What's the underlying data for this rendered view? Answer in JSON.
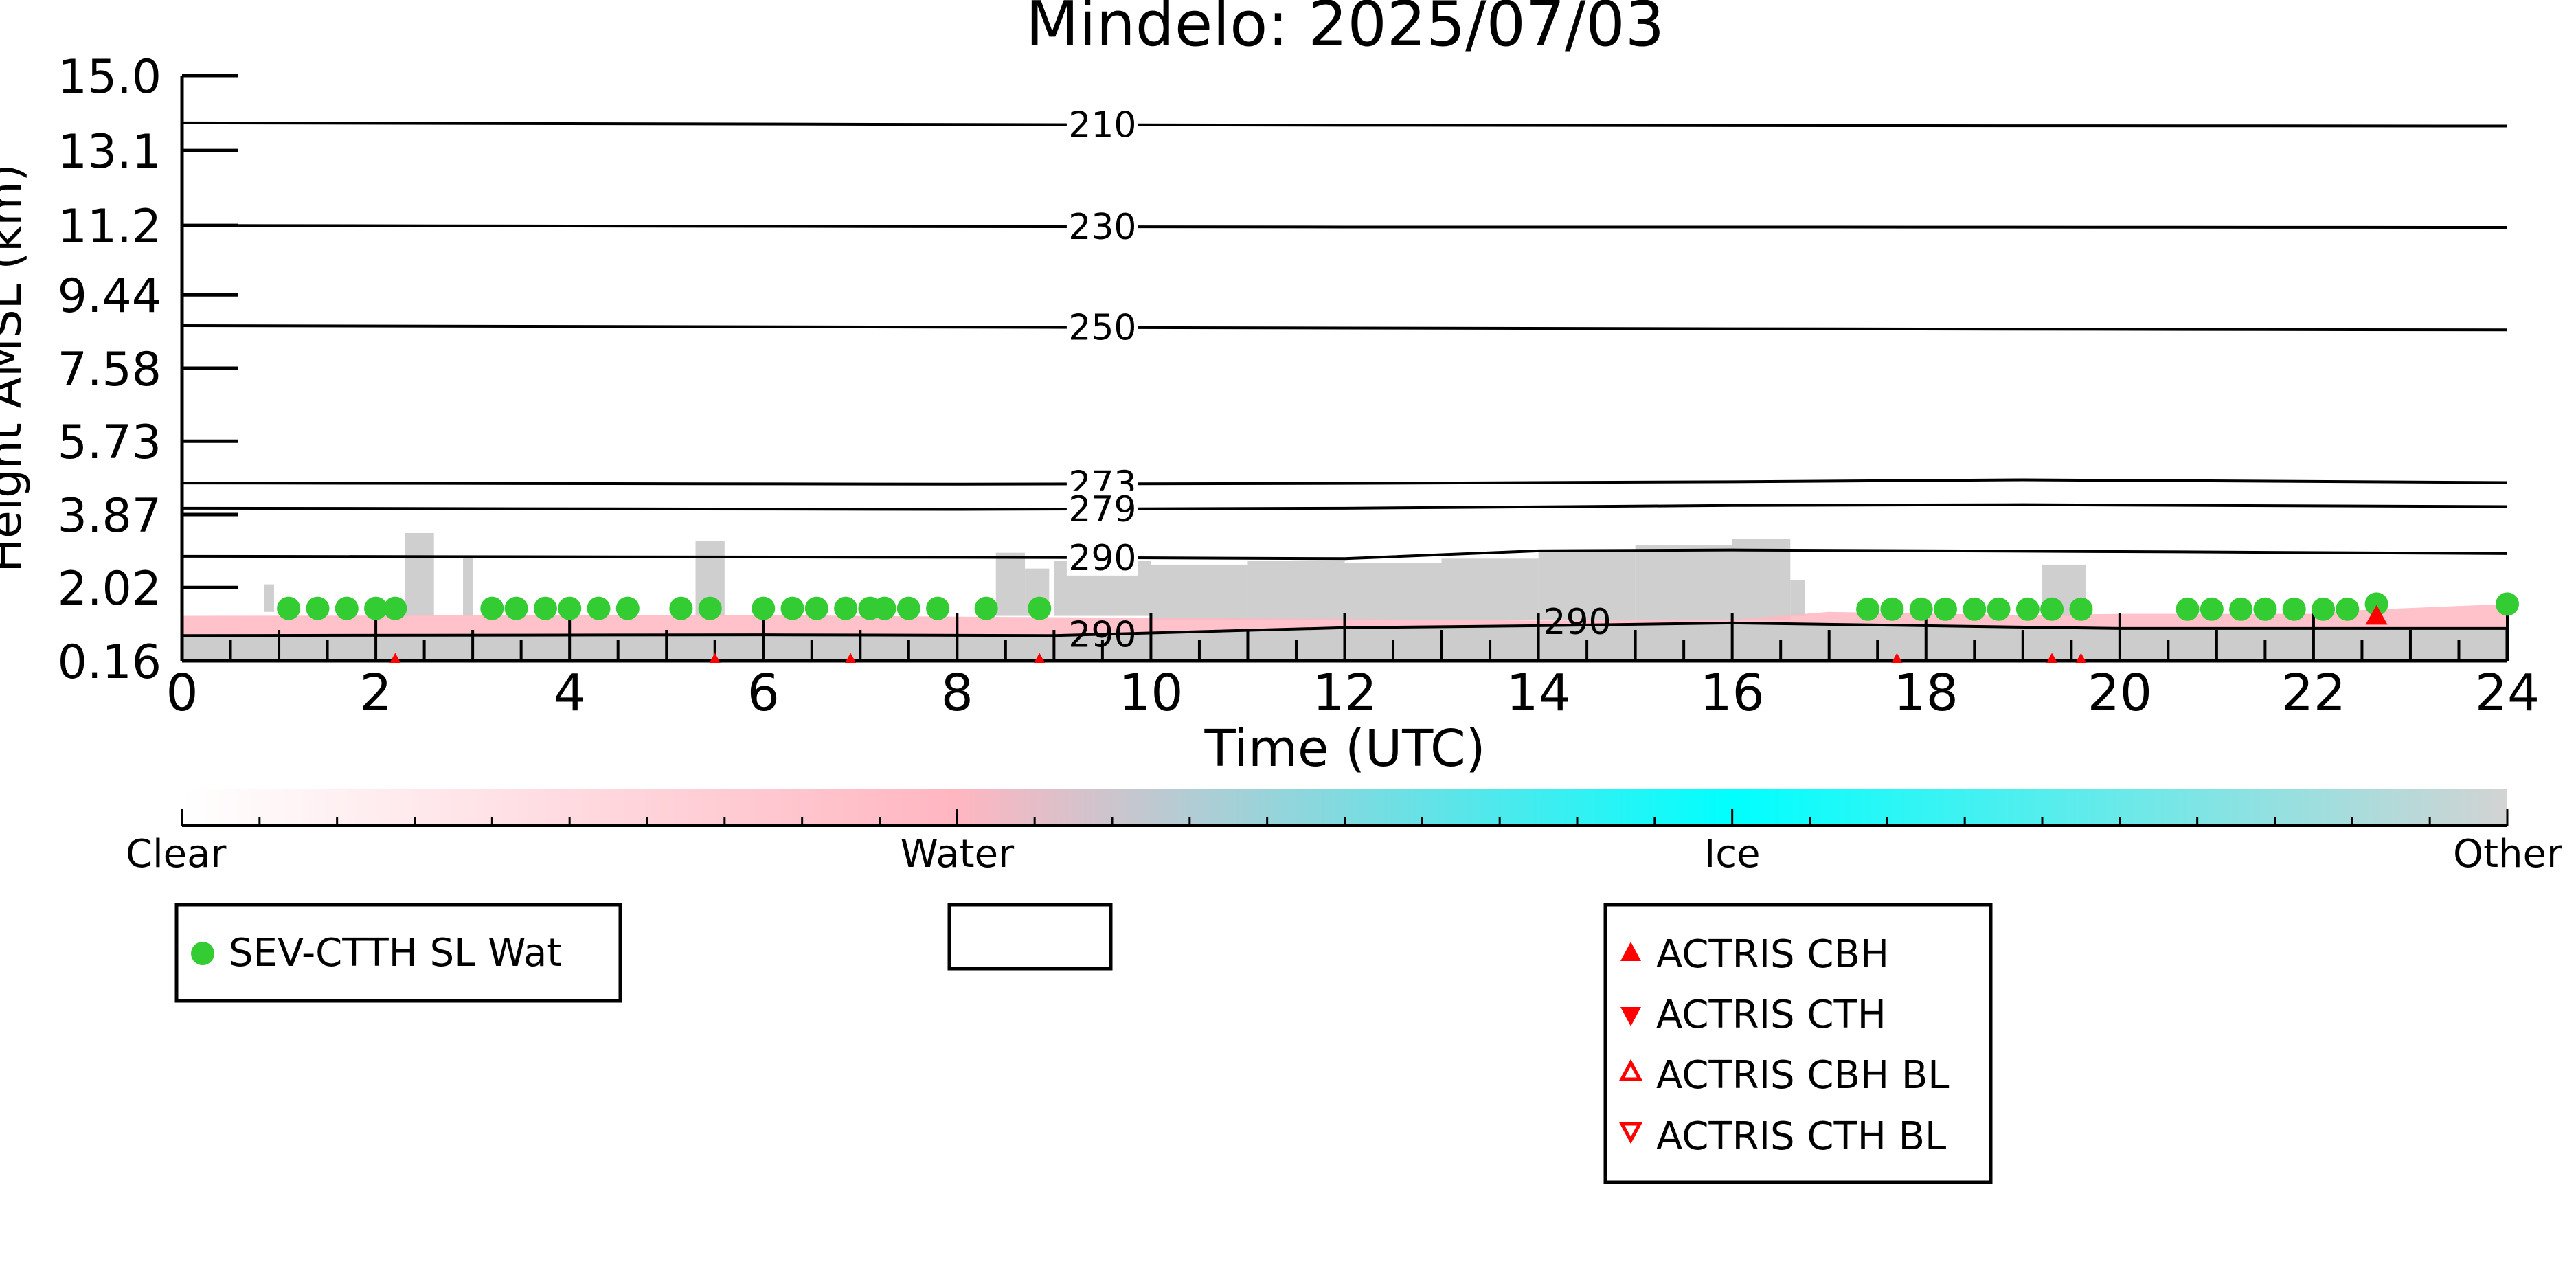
{
  "chart_data": {
    "type": "scatter",
    "title": "Mindelo: 2025/07/03",
    "xlabel": "Time (UTC)",
    "ylabel": "Height AMSL (km)",
    "xlim": [
      0,
      24
    ],
    "ylim": [
      0.16,
      15.0
    ],
    "x_ticks": [
      "0",
      "2",
      "4",
      "6",
      "8",
      "10",
      "12",
      "14",
      "16",
      "18",
      "20",
      "22",
      "24"
    ],
    "y_ticks": [
      "0.16",
      "2.02",
      "3.87",
      "5.73",
      "7.58",
      "9.44",
      "11.2",
      "13.1",
      "15.0"
    ],
    "y_tick_values": [
      0.16,
      2.02,
      3.87,
      5.73,
      7.58,
      9.44,
      11.2,
      13.1,
      15.0
    ],
    "isotherms": [
      {
        "label": "210",
        "label_x": 9.5,
        "points": [
          [
            0,
            13.8
          ],
          [
            8,
            13.76
          ],
          [
            12,
            13.74
          ],
          [
            16,
            13.73
          ],
          [
            24,
            13.72
          ]
        ]
      },
      {
        "label": "230",
        "label_x": 9.5,
        "points": [
          [
            0,
            11.2
          ],
          [
            8,
            11.17
          ],
          [
            12,
            11.16
          ],
          [
            16,
            11.16
          ],
          [
            24,
            11.15
          ]
        ]
      },
      {
        "label": "250",
        "label_x": 9.5,
        "points": [
          [
            0,
            8.66
          ],
          [
            8,
            8.62
          ],
          [
            12,
            8.6
          ],
          [
            16,
            8.58
          ],
          [
            24,
            8.55
          ]
        ]
      },
      {
        "label": "273",
        "label_x": 9.5,
        "points": [
          [
            0,
            4.67
          ],
          [
            8,
            4.64
          ],
          [
            12,
            4.66
          ],
          [
            16,
            4.7
          ],
          [
            19,
            4.75
          ],
          [
            24,
            4.68
          ]
        ]
      },
      {
        "label": "279",
        "label_x": 9.5,
        "points": [
          [
            0,
            4.03
          ],
          [
            8,
            4.0
          ],
          [
            12,
            4.03
          ],
          [
            16,
            4.1
          ],
          [
            19,
            4.12
          ],
          [
            24,
            4.07
          ]
        ]
      },
      {
        "label": "290",
        "label_x": 9.5,
        "points": [
          [
            0,
            2.81
          ],
          [
            9,
            2.78
          ],
          [
            12,
            2.75
          ],
          [
            14,
            2.95
          ],
          [
            16,
            2.97
          ],
          [
            20,
            2.93
          ],
          [
            24,
            2.88
          ]
        ]
      },
      {
        "label": "290",
        "label_x": 9.5,
        "points": [
          [
            0,
            0.8
          ],
          [
            6,
            0.82
          ],
          [
            9,
            0.8
          ],
          [
            12,
            1.0
          ],
          [
            14,
            1.05
          ],
          [
            16,
            1.12
          ],
          [
            20,
            0.98
          ],
          [
            24,
            0.98
          ]
        ]
      }
    ],
    "isotherm_extra_labels": [
      {
        "label": "290",
        "x": 14.4,
        "y": 1.15
      }
    ],
    "water_layer": [
      [
        0,
        1.3
      ],
      [
        6,
        1.32
      ],
      [
        8,
        1.28
      ],
      [
        10,
        1.25
      ],
      [
        12,
        1.22
      ],
      [
        14,
        1.18
      ],
      [
        16,
        1.2
      ],
      [
        17,
        1.4
      ],
      [
        19,
        1.32
      ],
      [
        20,
        1.35
      ],
      [
        22,
        1.35
      ],
      [
        22.5,
        1.45
      ],
      [
        24,
        1.6
      ]
    ],
    "other_bands": [
      [
        0.85,
        0.95,
        1.4,
        2.1
      ],
      [
        2.3,
        2.6,
        1.3,
        3.4
      ],
      [
        2.9,
        3.0,
        1.3,
        2.8
      ],
      [
        5.3,
        5.6,
        1.3,
        3.2
      ],
      [
        8.4,
        8.7,
        1.3,
        2.9
      ],
      [
        8.7,
        8.95,
        1.3,
        2.5
      ],
      [
        9.0,
        10.0,
        1.3,
        2.7
      ],
      [
        10.0,
        11.0,
        1.2,
        2.6
      ],
      [
        11.0,
        12.0,
        1.2,
        2.7
      ],
      [
        12.0,
        13.0,
        1.2,
        2.65
      ],
      [
        13.0,
        14.0,
        1.2,
        2.75
      ],
      [
        14.0,
        15.0,
        1.2,
        2.95
      ],
      [
        15.0,
        16.0,
        1.2,
        3.1
      ],
      [
        16.0,
        16.6,
        1.2,
        3.25
      ],
      [
        16.6,
        16.75,
        1.3,
        2.2
      ],
      [
        19.2,
        19.65,
        1.3,
        2.6
      ]
    ],
    "series": [
      {
        "name": "SEV-CTTH SL Wat",
        "color": "#33cc33",
        "marker": "circle",
        "points": [
          [
            1.1,
            1.49
          ],
          [
            1.4,
            1.49
          ],
          [
            1.7,
            1.49
          ],
          [
            2.0,
            1.49
          ],
          [
            2.2,
            1.49
          ],
          [
            3.2,
            1.49
          ],
          [
            3.45,
            1.49
          ],
          [
            3.75,
            1.49
          ],
          [
            4.0,
            1.49
          ],
          [
            4.3,
            1.49
          ],
          [
            4.6,
            1.49
          ],
          [
            5.15,
            1.49
          ],
          [
            5.45,
            1.49
          ],
          [
            6.0,
            1.49
          ],
          [
            6.3,
            1.49
          ],
          [
            6.55,
            1.49
          ],
          [
            6.85,
            1.49
          ],
          [
            7.1,
            1.49
          ],
          [
            7.25,
            1.49
          ],
          [
            7.5,
            1.49
          ],
          [
            7.8,
            1.49
          ],
          [
            8.3,
            1.49
          ],
          [
            8.85,
            1.49
          ],
          [
            17.4,
            1.47
          ],
          [
            17.65,
            1.47
          ],
          [
            17.95,
            1.47
          ],
          [
            18.2,
            1.47
          ],
          [
            18.5,
            1.47
          ],
          [
            18.75,
            1.47
          ],
          [
            19.05,
            1.47
          ],
          [
            19.3,
            1.47
          ],
          [
            19.6,
            1.47
          ],
          [
            20.7,
            1.47
          ],
          [
            20.95,
            1.47
          ],
          [
            21.25,
            1.47
          ],
          [
            21.5,
            1.47
          ],
          [
            21.8,
            1.47
          ],
          [
            22.1,
            1.47
          ],
          [
            22.35,
            1.47
          ],
          [
            22.65,
            1.6
          ],
          [
            24.0,
            1.6
          ]
        ]
      },
      {
        "name": "ACTRIS CBH",
        "color": "#ff0000",
        "marker": "triangle-up-filled",
        "points": [
          [
            2.2,
            0.22
          ],
          [
            5.5,
            0.22
          ],
          [
            6.9,
            0.22
          ],
          [
            8.85,
            0.22
          ],
          [
            17.7,
            0.22
          ],
          [
            19.3,
            0.22
          ],
          [
            19.6,
            0.22
          ],
          [
            22.65,
            1.3
          ]
        ]
      },
      {
        "name": "ACTRIS CTH",
        "color": "#ff0000",
        "marker": "triangle-down-filled",
        "points": []
      },
      {
        "name": "ACTRIS CBH BL",
        "color": "#ff0000",
        "marker": "triangle-up-open",
        "points": []
      },
      {
        "name": "ACTRIS CTH BL",
        "color": "#ff0000",
        "marker": "triangle-down-open",
        "points": []
      }
    ],
    "colorbar": {
      "labels": [
        "Clear",
        "Water",
        "Ice",
        "Other"
      ],
      "colors": [
        "#ffffff",
        "#ffb6c1",
        "#00ffff",
        "#d3d3d3"
      ]
    },
    "legends": [
      {
        "entries": [
          "SEV-CTTH SL Wat"
        ]
      },
      {
        "entries": []
      },
      {
        "entries": [
          "ACTRIS CBH",
          "ACTRIS CTH",
          "ACTRIS CBH BL",
          "ACTRIS CTH BL"
        ]
      }
    ],
    "colors": {
      "ground": "#cccccc",
      "other": "#cccccc",
      "water": "#ffb6c1",
      "sev": "#33cc33",
      "actris": "#ff0000"
    }
  }
}
